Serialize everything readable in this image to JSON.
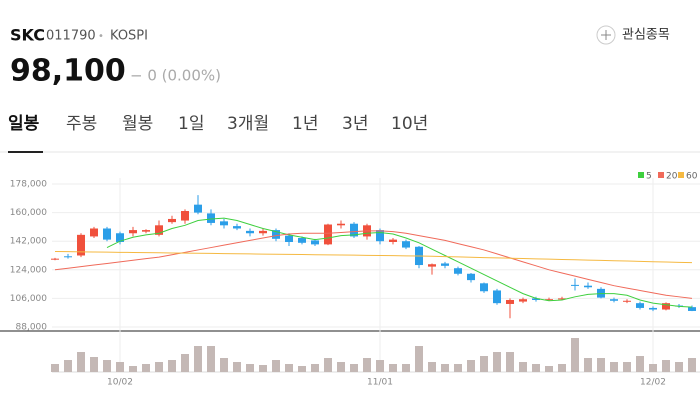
{
  "header": {
    "name": "SKC",
    "code": "011790",
    "separator": "•",
    "market": "KOSPI",
    "watch_button": "관심종목",
    "price": "98,100",
    "change": "− 0 (0.00%)"
  },
  "tabs": [
    "일봉",
    "주봉",
    "월봉",
    "1일",
    "3개월",
    "1년",
    "3년",
    "10년"
  ],
  "chart_data": {
    "type": "candlestick",
    "categories": [
      null,
      null,
      null,
      null,
      null,
      "10/02",
      null,
      null,
      null,
      null,
      null,
      null,
      null,
      null,
      null,
      null,
      null,
      null,
      null,
      null,
      null,
      null,
      null,
      null,
      null,
      "11/01",
      null,
      null,
      null,
      null,
      null,
      null,
      null,
      null,
      null,
      null,
      null,
      null,
      null,
      null,
      null,
      null,
      null,
      null,
      null,
      null,
      "12/02",
      null,
      null,
      null
    ],
    "open": [
      130500,
      132500,
      133000,
      145000,
      150000,
      147000,
      147000,
      148000,
      146000,
      154000,
      155000,
      165000,
      159500,
      154500,
      151500,
      148500,
      147000,
      149000,
      145500,
      144000,
      142500,
      140000,
      152000,
      153000,
      145000,
      149000,
      141500,
      142000,
      138500,
      126000,
      128000,
      125000,
      121500,
      115500,
      111000,
      102500,
      104000,
      106000,
      105000,
      105500,
      114500,
      114000,
      112000,
      105500,
      104000,
      103000,
      100000,
      99000,
      101500,
      100500
    ],
    "high": [
      131500,
      134000,
      147000,
      151000,
      151000,
      148000,
      151000,
      149500,
      155000,
      158000,
      162000,
      171000,
      162000,
      156000,
      153000,
      150000,
      150000,
      150000,
      147000,
      145000,
      143500,
      153000,
      155000,
      154000,
      153000,
      150000,
      144000,
      143000,
      139000,
      128000,
      129000,
      126000,
      122000,
      116000,
      112000,
      106000,
      106500,
      107000,
      106500,
      107000,
      118500,
      116000,
      113000,
      106500,
      105500,
      104000,
      101000,
      103500,
      102500,
      101500
    ],
    "low": [
      130000,
      131000,
      132000,
      144000,
      142000,
      140000,
      145000,
      147000,
      145000,
      153000,
      153000,
      159000,
      152000,
      150000,
      149000,
      145000,
      145500,
      142000,
      139000,
      140000,
      139000,
      139500,
      150000,
      144000,
      143000,
      140000,
      140000,
      137000,
      125000,
      121000,
      125000,
      120500,
      116000,
      109500,
      102000,
      93500,
      103000,
      104000,
      104500,
      105000,
      111000,
      112000,
      106000,
      103500,
      103000,
      99000,
      98000,
      98500,
      100000,
      98000
    ],
    "close": [
      131000,
      132000,
      146000,
      150000,
      143000,
      141500,
      149000,
      149000,
      152000,
      156000,
      161000,
      160000,
      153500,
      152000,
      150000,
      147000,
      148500,
      143500,
      141500,
      141000,
      140000,
      152500,
      153000,
      145000,
      152000,
      142000,
      143000,
      138000,
      127000,
      127500,
      126500,
      121500,
      117500,
      110500,
      103000,
      105000,
      105500,
      105000,
      105500,
      106000,
      114000,
      113000,
      106500,
      104500,
      104500,
      100000,
      99000,
      103000,
      101000,
      98100
    ],
    "volume": [
      8,
      12,
      20,
      15,
      12,
      10,
      6,
      8,
      10,
      12,
      18,
      26,
      26,
      14,
      10,
      8,
      7,
      12,
      8,
      6,
      8,
      14,
      10,
      8,
      14,
      12,
      8,
      8,
      26,
      10,
      8,
      8,
      12,
      16,
      20,
      20,
      10,
      8,
      6,
      8,
      34,
      14,
      14,
      10,
      10,
      16,
      8,
      12,
      10,
      14
    ],
    "volume_ylim": [
      0,
      42
    ],
    "up_color": "#f0503c",
    "down_color": "#2b9ee8",
    "volume_color": "#c4b8b5",
    "moving_averages": [
      {
        "name": "5",
        "color": "#3ecf3e",
        "values": [
          null,
          null,
          null,
          null,
          138000,
          142000,
          144500,
          146000,
          147000,
          150000,
          152000,
          155000,
          156000,
          156500,
          155000,
          152500,
          150000,
          148000,
          146000,
          144500,
          143000,
          144000,
          145500,
          146000,
          147000,
          147500,
          146500,
          144000,
          141000,
          137000,
          133000,
          129000,
          125000,
          121000,
          117000,
          113000,
          109000,
          106000,
          104500,
          105000,
          107000,
          108500,
          109000,
          109000,
          108000,
          105000,
          103000,
          102000,
          101000,
          100500
        ]
      },
      {
        "name": "20",
        "color": "#f06a5a",
        "values": [
          124000,
          125000,
          126000,
          127000,
          128000,
          129000,
          130000,
          131000,
          132000,
          133500,
          135000,
          136500,
          138000,
          139500,
          141000,
          142500,
          144000,
          145500,
          146500,
          147000,
          147000,
          147000,
          147500,
          148000,
          148500,
          148500,
          148000,
          147000,
          145500,
          144000,
          142500,
          140500,
          138500,
          136500,
          134000,
          131500,
          129000,
          126500,
          124000,
          122000,
          120000,
          118000,
          116000,
          114000,
          112500,
          111000,
          109500,
          108000,
          107000,
          106000
        ]
      },
      {
        "name": "60",
        "color": "#f5b942",
        "values": [
          135500,
          135400,
          135300,
          135200,
          135100,
          135000,
          134900,
          134800,
          134700,
          134600,
          134500,
          134400,
          134300,
          134200,
          134100,
          134000,
          133900,
          133800,
          133700,
          133600,
          133500,
          133400,
          133300,
          133200,
          133100,
          133000,
          132900,
          132800,
          132700,
          132500,
          132300,
          132100,
          131900,
          131700,
          131500,
          131300,
          131100,
          130900,
          130700,
          130500,
          130300,
          130100,
          129900,
          129700,
          129500,
          129300,
          129100,
          128900,
          128700,
          128500
        ]
      }
    ],
    "ylim": [
      88000,
      178000
    ],
    "yticks": [
      {
        "value": 88000,
        "label": "88,000"
      },
      {
        "value": 106000,
        "label": "106,000"
      },
      {
        "value": 124000,
        "label": "124,000"
      },
      {
        "value": 142000,
        "label": "142,000"
      },
      {
        "value": 160000,
        "label": "160,000"
      },
      {
        "value": 178000,
        "label": "178,000"
      }
    ],
    "grid": true
  }
}
